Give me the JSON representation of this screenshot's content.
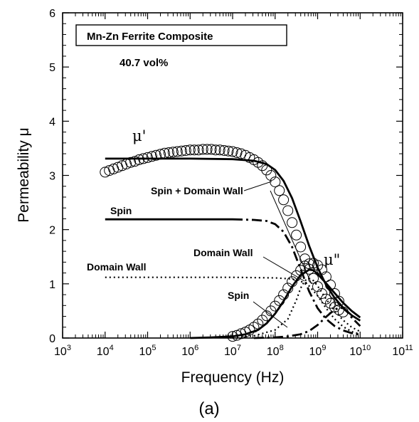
{
  "chart_data": {
    "type": "line",
    "title_box": "Mn-Zn Ferrite Composite",
    "subtitle": "40.7 vol%",
    "xlabel": "Frequency (Hz)",
    "ylabel": "Permeability μ",
    "panel_label": "(a)",
    "xscale": "log",
    "xlim": [
      1000,
      100000000000
    ],
    "ylim": [
      0,
      6
    ],
    "x_tick_labels": [
      {
        "base": "10",
        "exp": "3"
      },
      {
        "base": "10",
        "exp": "4"
      },
      {
        "base": "10",
        "exp": "5"
      },
      {
        "base": "10",
        "exp": "6"
      },
      {
        "base": "10",
        "exp": "7"
      },
      {
        "base": "10",
        "exp": "8"
      },
      {
        "base": "10",
        "exp": "9"
      },
      {
        "base": "10",
        "exp": "10"
      },
      {
        "base": "10",
        "exp": "11"
      }
    ],
    "y_tick_labels": [
      "0",
      "1",
      "2",
      "3",
      "4",
      "5",
      "6"
    ],
    "grid": false,
    "annotations": {
      "mu_real": "μ'",
      "mu_imag": "μ\"",
      "spin_dw": "Spin + Domain Wall",
      "spin_real": "Spin",
      "dw_real": "Domain Wall",
      "dw_imag": "Domain Wall",
      "spin_imag": "Spin"
    },
    "series": [
      {
        "style": "open-circles",
        "x": [
          10000,
          12600,
          15800,
          20000,
          25100,
          31600,
          39800,
          50100,
          63100,
          79400,
          100000,
          126000,
          158000,
          200000,
          251000,
          316000,
          398000,
          501000,
          631000,
          794000,
          1000000,
          1260000,
          1580000,
          2000000,
          2510000,
          3160000,
          3980000,
          5010000,
          6310000,
          7940000,
          10000000,
          12600000,
          15800000,
          20000000,
          25100000,
          31600000,
          39800000,
          50100000,
          63100000,
          79400000,
          100000000,
          126000000,
          158000000,
          200000000,
          251000000,
          316000000,
          398000000,
          501000000,
          631000000,
          794000000,
          1000000000,
          1260000000,
          1580000000,
          2000000000,
          2510000000,
          3160000000,
          3980000000
        ],
        "y": [
          3.06,
          3.09,
          3.12,
          3.15,
          3.18,
          3.21,
          3.24,
          3.26,
          3.29,
          3.31,
          3.33,
          3.35,
          3.37,
          3.39,
          3.41,
          3.42,
          3.43,
          3.44,
          3.45,
          3.46,
          3.47,
          3.47,
          3.47,
          3.48,
          3.48,
          3.48,
          3.47,
          3.47,
          3.46,
          3.45,
          3.44,
          3.42,
          3.4,
          3.37,
          3.33,
          3.29,
          3.24,
          3.18,
          3.1,
          3.0,
          2.88,
          2.72,
          2.55,
          2.35,
          2.13,
          1.9,
          1.68,
          1.46,
          1.27,
          1.1,
          0.95,
          0.82,
          0.72,
          0.64,
          0.57,
          0.52,
          0.48
        ]
      },
      {
        "style": "open-circles",
        "x": [
          10000000,
          12600000,
          15800000,
          20000000,
          25100000,
          31600000,
          39800000,
          50100000,
          63100000,
          79400000,
          100000000,
          126000000,
          158000000,
          200000000,
          251000000,
          316000000,
          398000000,
          501000000,
          631000000,
          794000000,
          1000000000,
          1260000000,
          1580000000,
          2000000000,
          2510000000,
          3160000000
        ],
        "y": [
          0.03,
          0.05,
          0.08,
          0.11,
          0.15,
          0.2,
          0.26,
          0.33,
          0.41,
          0.5,
          0.59,
          0.69,
          0.8,
          0.92,
          1.04,
          1.15,
          1.25,
          1.33,
          1.37,
          1.38,
          1.34,
          1.26,
          1.13,
          0.98,
          0.82,
          0.68
        ]
      },
      {
        "style": "solid-thick",
        "x": [
          10000,
          100000,
          1000000,
          10000000,
          31600000,
          63100000,
          100000000,
          158000000,
          251000000,
          398000000,
          631000000,
          1000000000,
          1580000000,
          2510000000,
          3980000000,
          6310000000,
          10000000000
        ],
        "y": [
          3.31,
          3.31,
          3.31,
          3.3,
          3.27,
          3.21,
          3.1,
          2.9,
          2.58,
          2.15,
          1.7,
          1.3,
          0.98,
          0.74,
          0.56,
          0.42,
          0.32
        ]
      },
      {
        "style": "solid-thick",
        "x": [
          1000000,
          3160000,
          10000000,
          20000000,
          39800000,
          63100000,
          100000000,
          158000000,
          251000000,
          398000000,
          631000000,
          794000000,
          1000000000,
          1580000000,
          2510000000,
          3980000000,
          6310000000,
          10000000000
        ],
        "y": [
          0.0,
          0.01,
          0.03,
          0.07,
          0.15,
          0.27,
          0.45,
          0.68,
          0.95,
          1.16,
          1.26,
          1.25,
          1.18,
          1.01,
          0.83,
          0.65,
          0.5,
          0.38
        ]
      },
      {
        "style": "solid-then-dashdot",
        "x": [
          10000,
          100000,
          1000000,
          5010000,
          10000000,
          31600000,
          63100000,
          100000000,
          158000000,
          251000000,
          398000000,
          631000000,
          1000000000,
          1580000000,
          2510000000,
          3980000000,
          6310000000,
          10000000000
        ],
        "y": [
          2.19,
          2.19,
          2.19,
          2.19,
          2.19,
          2.18,
          2.16,
          2.1,
          1.96,
          1.68,
          1.27,
          0.86,
          0.55,
          0.35,
          0.22,
          0.14,
          0.09,
          0.06
        ]
      },
      {
        "style": "dotted",
        "x": [
          10000,
          100000,
          1000000,
          10000000,
          100000000,
          251000000,
          398000000,
          631000000,
          1000000000,
          1580000000,
          2510000000,
          3980000000,
          6310000000,
          10000000000
        ],
        "y": [
          1.12,
          1.12,
          1.12,
          1.12,
          1.11,
          1.09,
          1.05,
          0.96,
          0.78,
          0.55,
          0.35,
          0.21,
          0.12,
          0.07
        ]
      },
      {
        "style": "dotted",
        "x": [
          10000000,
          31600000,
          100000000,
          200000000,
          316000000,
          398000000,
          501000000,
          631000000,
          794000000,
          1000000000,
          1580000000,
          2510000000,
          3980000000,
          6310000000,
          10000000000
        ],
        "y": [
          0.01,
          0.04,
          0.15,
          0.35,
          0.7,
          0.92,
          1.06,
          1.1,
          1.06,
          0.96,
          0.72,
          0.5,
          0.33,
          0.2,
          0.12
        ]
      },
      {
        "style": "dash-dot",
        "x": [
          31600000,
          100000000,
          200000000,
          398000000,
          631000000,
          1000000000,
          1580000000,
          2000000000,
          2510000000,
          3160000000,
          3980000000,
          5010000000,
          6310000000,
          10000000000
        ],
        "y": [
          0.0,
          0.01,
          0.03,
          0.07,
          0.13,
          0.24,
          0.39,
          0.46,
          0.52,
          0.56,
          0.55,
          0.48,
          0.38,
          0.22
        ]
      }
    ]
  }
}
